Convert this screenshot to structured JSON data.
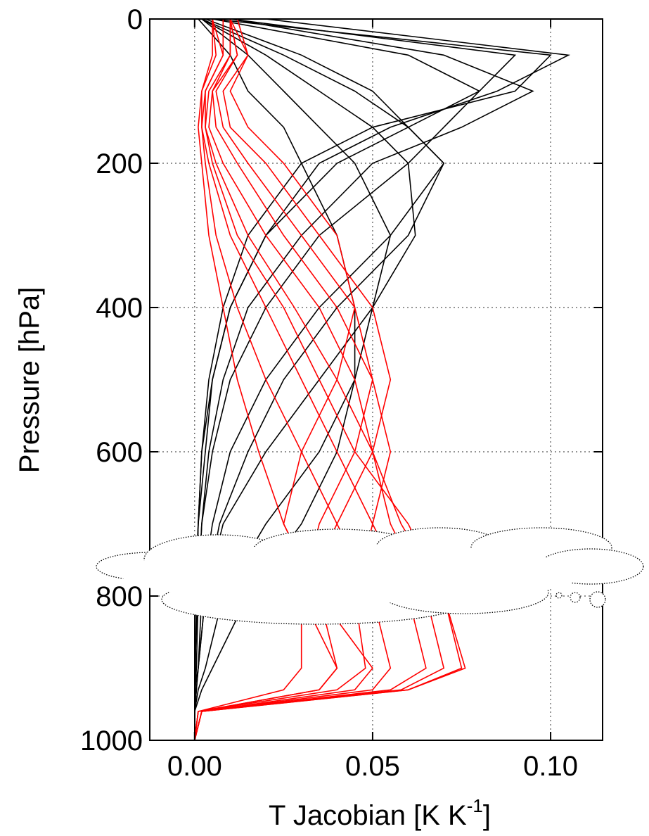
{
  "chart_data": {
    "type": "profile",
    "xlabel": [
      "T Jacobian [K K",
      "-1",
      "]"
    ],
    "ylabel": "Pressure [hPa]",
    "y": [
      0,
      50,
      100,
      150,
      200,
      300,
      400,
      500,
      600,
      700,
      800,
      900,
      930,
      960,
      1000
    ],
    "xlim": [
      -0.0126,
      0.1146
    ],
    "ylim": [
      1000,
      0
    ],
    "xticks": [
      {
        "value": 0,
        "label": "0.00"
      },
      {
        "value": 0.05,
        "label": "0.05"
      },
      {
        "value": 0.1,
        "label": "0.10"
      }
    ],
    "yticks": [
      0,
      200,
      400,
      600,
      800,
      1000
    ],
    "grid": true,
    "series": [
      {
        "color": "#000000",
        "values": [
          0.005,
          0.1,
          0.09,
          0.05,
          0.03,
          0.015,
          0.008,
          0.004,
          0.002,
          0.001,
          0.0005,
          0.0002,
          0.0001,
          0,
          0
        ]
      },
      {
        "color": "#000000",
        "values": [
          0.01,
          0.09,
          0.08,
          0.06,
          0.04,
          0.02,
          0.01,
          0.005,
          0.003,
          0.001,
          0.0005,
          0.0002,
          0.0001,
          0,
          0
        ]
      },
      {
        "color": "#000000",
        "values": [
          0.005,
          0.06,
          0.08,
          0.07,
          0.06,
          0.035,
          0.02,
          0.01,
          0.005,
          0.002,
          0.001,
          0.0005,
          0.0002,
          0,
          0
        ]
      },
      {
        "color": "#000000",
        "values": [
          0.003,
          0.03,
          0.05,
          0.06,
          0.07,
          0.055,
          0.035,
          0.02,
          0.01,
          0.005,
          0.002,
          0.001,
          0.0005,
          0,
          0
        ]
      },
      {
        "color": "#000000",
        "values": [
          0.002,
          0.02,
          0.035,
          0.05,
          0.06,
          0.062,
          0.05,
          0.035,
          0.02,
          0.008,
          0.003,
          0.001,
          0.0005,
          0,
          0
        ]
      },
      {
        "color": "#000000",
        "values": [
          0.002,
          0.015,
          0.025,
          0.035,
          0.045,
          0.055,
          0.05,
          0.045,
          0.035,
          0.02,
          0.008,
          0.003,
          0.001,
          0,
          0
        ]
      },
      {
        "color": "#000000",
        "values": [
          0.001,
          0.01,
          0.015,
          0.025,
          0.03,
          0.04,
          0.045,
          0.045,
          0.04,
          0.03,
          0.015,
          0.005,
          0.002,
          0,
          0
        ]
      },
      {
        "color": "#000000",
        "values": [
          0.02,
          0.105,
          0.085,
          0.055,
          0.035,
          0.02,
          0.01,
          0.005,
          0.002,
          0.001,
          0,
          0,
          0,
          0,
          0
        ]
      },
      {
        "color": "#000000",
        "values": [
          0.01,
          0.07,
          0.095,
          0.075,
          0.05,
          0.03,
          0.015,
          0.008,
          0.004,
          0.002,
          0.001,
          0,
          0,
          0,
          0
        ]
      },
      {
        "color": "#000000",
        "values": [
          0.002,
          0.025,
          0.045,
          0.06,
          0.07,
          0.06,
          0.04,
          0.025,
          0.015,
          0.007,
          0.003,
          0.001,
          0,
          0,
          0
        ]
      },
      {
        "color": "#ff0000",
        "values": [
          0.01,
          0.012,
          0.005,
          0.004,
          0.008,
          0.02,
          0.035,
          0.045,
          0.05,
          0.055,
          0.065,
          0.07,
          0.058,
          0.002,
          0
        ]
      },
      {
        "color": "#ff0000",
        "values": [
          0.01,
          0.01,
          0.004,
          0.003,
          0.006,
          0.015,
          0.028,
          0.04,
          0.05,
          0.058,
          0.07,
          0.075,
          0.06,
          0.002,
          0
        ]
      },
      {
        "color": "#ff0000",
        "values": [
          0.008,
          0.008,
          0.003,
          0.002,
          0.004,
          0.01,
          0.02,
          0.03,
          0.04,
          0.05,
          0.06,
          0.065,
          0.055,
          0.002,
          0
        ]
      },
      {
        "color": "#ff0000",
        "values": [
          0.01,
          0.015,
          0.01,
          0.015,
          0.025,
          0.04,
          0.045,
          0.04,
          0.03,
          0.025,
          0.035,
          0.05,
          0.045,
          0.002,
          0
        ]
      },
      {
        "color": "#ff0000",
        "values": [
          0.01,
          0.012,
          0.006,
          0.008,
          0.015,
          0.03,
          0.045,
          0.05,
          0.045,
          0.035,
          0.03,
          0.04,
          0.035,
          0.001,
          0
        ]
      },
      {
        "color": "#ff0000",
        "values": [
          0.005,
          0.006,
          0.002,
          0.002,
          0.003,
          0.006,
          0.012,
          0.02,
          0.03,
          0.04,
          0.05,
          0.055,
          0.05,
          0.002,
          0
        ]
      },
      {
        "color": "#ff0000",
        "values": [
          0.01,
          0.01,
          0.005,
          0.006,
          0.012,
          0.025,
          0.04,
          0.05,
          0.055,
          0.05,
          0.045,
          0.048,
          0.04,
          0.001,
          0
        ]
      },
      {
        "color": "#ff0000",
        "values": [
          0.005,
          0.008,
          0.003,
          0.003,
          0.005,
          0.012,
          0.025,
          0.035,
          0.045,
          0.06,
          0.07,
          0.076,
          0.06,
          0.002,
          0
        ]
      },
      {
        "color": "#ff0000",
        "values": [
          0.012,
          0.015,
          0.008,
          0.01,
          0.02,
          0.035,
          0.05,
          0.055,
          0.05,
          0.04,
          0.03,
          0.03,
          0.025,
          0.001,
          0
        ]
      },
      {
        "color": "#ff0000",
        "values": [
          0.005,
          0.005,
          0.002,
          0.001,
          0.002,
          0.004,
          0.008,
          0.012,
          0.018,
          0.025,
          0.035,
          0.04,
          0.035,
          0.001,
          0
        ]
      }
    ]
  }
}
